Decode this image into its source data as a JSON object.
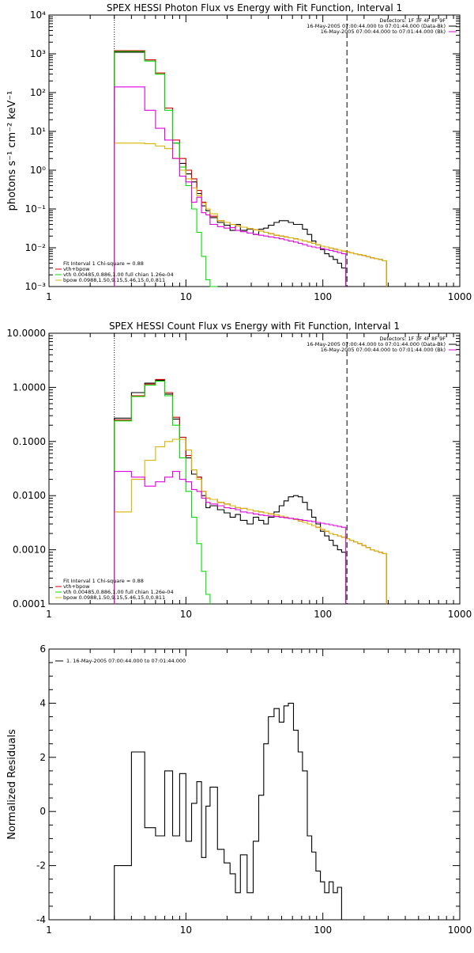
{
  "colors": {
    "data_black": "#000000",
    "total_red": "#d00000",
    "vth_green": "#00dd00",
    "bpow_yellow": "#d8b400",
    "bk_magenta": "#e000e0"
  },
  "chart_data": [
    {
      "type": "line",
      "title": "SPEX HESSI Photon Flux vs Energy with Fit Function, Interval 1",
      "ylabel": "photons s⁻¹ cm⁻² keV⁻¹",
      "xscale": "log",
      "yscale": "log",
      "xlim": [
        1,
        1000
      ],
      "ylim": [
        0.001,
        10000
      ],
      "x_ticks": [
        "1",
        "10",
        "100",
        "1000"
      ],
      "y_ticks": [
        "10⁻³",
        "10⁻²",
        "10⁻¹",
        "10⁰",
        "10¹",
        "10²",
        "10³",
        "10⁴"
      ],
      "vlines": [
        {
          "x": 3,
          "style": "dotted"
        },
        {
          "x": 150,
          "style": "dashed"
        }
      ],
      "legend_right": [
        {
          "text": "Detectors: 1F 3F 4F 8F 9F",
          "color": "#000000"
        },
        {
          "text": "16-May-2005 07:00:44.000 to 07:01:44.000 (Data-Bk)",
          "color": "#000000"
        },
        {
          "text": "16-May-2005 07:00:44.000 to 07:01:44.000 (Bk)",
          "color": "#e000e0"
        }
      ],
      "legend_left": [
        {
          "text": "Fit Interval 1   Chi-square = 0.88",
          "color": "#000000"
        },
        {
          "text": "vth+bpow",
          "color": "#d00000"
        },
        {
          "text": "vth 0.00485,0.886,1.00  full chian 1.26e-04",
          "color": "#00dd00"
        },
        {
          "text": "bpow 0.0988,1.50,9.15,5.46,15.0,0.811",
          "color": "#d8b400"
        }
      ],
      "edges": [
        3,
        4,
        5,
        6,
        7,
        8,
        9,
        10,
        11,
        12,
        13,
        14,
        15,
        17,
        19,
        21,
        23,
        25,
        28,
        31,
        34,
        37,
        40,
        44,
        48,
        52,
        56,
        61,
        66,
        71,
        77,
        83,
        89,
        96,
        103,
        111,
        119,
        128,
        137,
        147,
        157,
        168,
        180,
        193,
        207,
        222,
        238,
        255,
        273,
        292
      ],
      "series": [
        {
          "name": "Data-Bk",
          "color": "#000000",
          "values": [
            1100,
            1100,
            700,
            300,
            40,
            5,
            1.5,
            0.8,
            0.5,
            0.25,
            0.12,
            0.09,
            0.06,
            0.045,
            0.038,
            0.028,
            0.04,
            0.028,
            0.03,
            0.022,
            0.03,
            0.032,
            0.038,
            0.045,
            0.05,
            0.05,
            0.045,
            0.04,
            0.04,
            0.03,
            0.022,
            0.015,
            0.012,
            0.009,
            0.007,
            0.006,
            0.005,
            0.004,
            0.003,
            null,
            null,
            null,
            null,
            null,
            null,
            null,
            null,
            null,
            null
          ]
        },
        {
          "name": "vth+bpow",
          "color": "#d00000",
          "values": [
            1200,
            1200,
            700,
            320,
            40,
            6,
            2,
            1,
            0.6,
            0.3,
            0.15,
            0.1,
            0.065,
            0.05,
            0.045,
            0.04,
            0.037,
            0.034,
            0.031,
            0.029,
            0.027,
            0.025,
            0.023,
            0.021,
            0.02,
            0.019,
            0.018,
            0.017,
            0.016,
            0.015,
            0.014,
            0.013,
            0.012,
            0.011,
            0.0105,
            0.0098,
            0.0092,
            0.0087,
            0.0082,
            0.0078,
            0.0074,
            0.007,
            0.0066,
            0.0063,
            0.0059,
            0.0055,
            0.0052,
            0.005,
            0.0046
          ]
        },
        {
          "name": "vth",
          "color": "#00dd00",
          "values": [
            1150,
            1150,
            650,
            300,
            35,
            5,
            1.2,
            0.4,
            0.1,
            0.025,
            0.006,
            0.0015,
            0.0008,
            null,
            null,
            null,
            null,
            null,
            null,
            null,
            null,
            null,
            null,
            null,
            null,
            null,
            null,
            null,
            null,
            null,
            null,
            null,
            null,
            null,
            null,
            null,
            null,
            null,
            null,
            null,
            null,
            null,
            null,
            null,
            null,
            null,
            null,
            null,
            null
          ]
        },
        {
          "name": "bpow",
          "color": "#d8b400",
          "values": [
            5,
            5,
            4.8,
            4.2,
            3.6,
            2,
            1,
            0.6,
            0.35,
            0.22,
            0.14,
            0.1,
            0.075,
            0.05,
            0.045,
            0.04,
            0.037,
            0.034,
            0.031,
            0.029,
            0.027,
            0.025,
            0.023,
            0.021,
            0.02,
            0.019,
            0.018,
            0.017,
            0.016,
            0.015,
            0.014,
            0.013,
            0.012,
            0.011,
            0.0105,
            0.0098,
            0.0092,
            0.0087,
            0.0082,
            0.0078,
            0.0074,
            0.007,
            0.0066,
            0.0063,
            0.0059,
            0.0055,
            0.0052,
            0.005,
            0.0046
          ]
        },
        {
          "name": "Bk",
          "color": "#e000e0",
          "values": [
            140,
            140,
            35,
            12,
            6,
            2,
            0.7,
            0.5,
            0.15,
            0.2,
            0.08,
            0.07,
            0.04,
            0.035,
            0.032,
            0.033,
            0.028,
            0.026,
            0.024,
            0.022,
            0.021,
            0.02,
            0.019,
            0.018,
            0.017,
            0.016,
            0.015,
            0.014,
            0.013,
            0.012,
            0.011,
            0.0105,
            0.01,
            0.0095,
            0.009,
            0.0085,
            0.008,
            0.0075,
            0.007,
            null,
            null,
            null,
            null,
            null,
            null,
            null,
            null,
            null,
            null
          ]
        }
      ]
    },
    {
      "type": "line",
      "title": "SPEX HESSI Count Flux vs Energy with Fit Function, Interval 1",
      "ylabel": "",
      "xscale": "log",
      "yscale": "log",
      "xlim": [
        1,
        1000
      ],
      "ylim": [
        0.0001,
        10
      ],
      "x_ticks": [
        "1",
        "10",
        "100",
        "1000"
      ],
      "y_ticks": [
        "0.0001",
        "0.0010",
        "0.0100",
        "0.1000",
        "1.0000",
        "10.0000"
      ],
      "vlines": [
        {
          "x": 3,
          "style": "dotted"
        },
        {
          "x": 150,
          "style": "dashed"
        }
      ],
      "legend_right": [
        {
          "text": "Detectors: 1F 3F 4F 8F 9F",
          "color": "#000000"
        },
        {
          "text": "16-May-2005 07:00:44.000 to 07:01:44.000 (Data-Bk)",
          "color": "#000000"
        },
        {
          "text": "16-May-2005 07:00:44.000 to 07:01:44.000 (Bk)",
          "color": "#e000e0"
        }
      ],
      "legend_left": [
        {
          "text": "Fit Interval 1   Chi-square = 0.88",
          "color": "#000000"
        },
        {
          "text": "vth+bpow",
          "color": "#d00000"
        },
        {
          "text": "vth 0.00485,0.886,1.00  full chian 1.26e-04",
          "color": "#00dd00"
        },
        {
          "text": "bpow 0.0988,1.50,9.15,5.46,15.0,0.811",
          "color": "#d8b400"
        }
      ],
      "edges": [
        3,
        4,
        5,
        6,
        7,
        8,
        9,
        10,
        11,
        12,
        13,
        14,
        15,
        17,
        19,
        21,
        23,
        25,
        28,
        31,
        34,
        37,
        40,
        44,
        48,
        52,
        56,
        61,
        66,
        71,
        77,
        83,
        89,
        96,
        103,
        111,
        119,
        128,
        137,
        147,
        157,
        168,
        180,
        193,
        207,
        222,
        238,
        255,
        273,
        292
      ],
      "series": [
        {
          "name": "Data-Bk",
          "color": "#000000",
          "values": [
            0.27,
            0.8,
            1.2,
            1.35,
            0.75,
            0.26,
            0.11,
            0.05,
            0.025,
            0.022,
            0.01,
            0.006,
            0.0065,
            0.0055,
            0.0048,
            0.004,
            0.0045,
            0.0035,
            0.003,
            0.004,
            0.0035,
            0.003,
            0.004,
            0.005,
            0.0065,
            0.008,
            0.0095,
            0.01,
            0.0095,
            0.0075,
            0.0055,
            0.004,
            0.003,
            0.0022,
            0.0018,
            0.0015,
            0.0012,
            0.001,
            0.0009,
            null,
            null,
            null,
            null,
            null,
            null,
            null,
            null,
            null,
            null
          ]
        },
        {
          "name": "vth+bpow",
          "color": "#d00000",
          "values": [
            0.25,
            0.7,
            1.15,
            1.4,
            0.8,
            0.28,
            0.12,
            0.055,
            0.03,
            0.022,
            0.012,
            0.009,
            0.0085,
            0.0075,
            0.007,
            0.0065,
            0.006,
            0.0058,
            0.0055,
            0.0052,
            0.005,
            0.0048,
            0.0046,
            0.0044,
            0.0042,
            0.004,
            0.0038,
            0.0036,
            0.0034,
            0.0032,
            0.003,
            0.0028,
            0.0026,
            0.0024,
            0.0022,
            0.002,
            0.0019,
            0.0018,
            0.0017,
            0.0016,
            0.0015,
            0.0014,
            0.0013,
            0.0012,
            0.0011,
            0.001,
            0.00095,
            0.0009,
            0.00085
          ]
        },
        {
          "name": "vth",
          "color": "#00dd00",
          "values": [
            0.24,
            0.68,
            1.1,
            1.3,
            0.7,
            0.2,
            0.05,
            0.012,
            0.004,
            0.0013,
            0.0004,
            0.00015,
            null,
            null,
            null,
            null,
            null,
            null,
            null,
            null,
            null,
            null,
            null,
            null,
            null,
            null,
            null,
            null,
            null,
            null,
            null,
            null,
            null,
            null,
            null,
            null,
            null,
            null,
            null,
            null,
            null,
            null,
            null,
            null,
            null,
            null,
            null,
            null,
            null
          ]
        },
        {
          "name": "bpow",
          "color": "#d8b400",
          "values": [
            0.005,
            0.02,
            0.045,
            0.08,
            0.1,
            0.11,
            0.11,
            0.07,
            0.03,
            0.02,
            0.012,
            0.009,
            0.0085,
            0.0075,
            0.007,
            0.0065,
            0.006,
            0.0058,
            0.0055,
            0.0052,
            0.005,
            0.0048,
            0.0046,
            0.0044,
            0.0042,
            0.004,
            0.0038,
            0.0036,
            0.0034,
            0.0032,
            0.003,
            0.0028,
            0.0026,
            0.0024,
            0.0022,
            0.002,
            0.0019,
            0.0018,
            0.0017,
            0.0016,
            0.0015,
            0.0014,
            0.0013,
            0.0012,
            0.0011,
            0.001,
            0.00095,
            0.0009,
            0.00085
          ]
        },
        {
          "name": "Bk",
          "color": "#e000e0",
          "values": [
            0.028,
            0.022,
            0.015,
            0.018,
            0.022,
            0.028,
            0.02,
            0.018,
            0.013,
            0.012,
            0.009,
            0.0075,
            0.007,
            0.0065,
            0.006,
            0.0058,
            0.0055,
            0.005,
            0.0048,
            0.0046,
            0.0044,
            0.0043,
            0.0042,
            0.0041,
            0.004,
            0.0039,
            0.0038,
            0.0037,
            0.0036,
            0.0035,
            0.0034,
            0.0033,
            0.0032,
            0.0031,
            0.003,
            0.0029,
            0.0028,
            0.0027,
            0.0026,
            null,
            null,
            null,
            null,
            null,
            null,
            null,
            null,
            null,
            null
          ]
        }
      ]
    },
    {
      "type": "line",
      "title": "",
      "ylabel": "Normalized Residuals",
      "xscale": "log",
      "yscale": "linear",
      "xlim": [
        1,
        1000
      ],
      "ylim": [
        -4,
        6
      ],
      "x_ticks": [
        "1",
        "10",
        "100",
        "1000"
      ],
      "y_ticks": [
        "-4",
        "-2",
        "0",
        "2",
        "4",
        "6"
      ],
      "vlines": [],
      "legend_right": [],
      "legend_left": [
        {
          "text": "1. 16-May-2005 07:00:44.000 to 07:01:44.000",
          "color": "#000000"
        }
      ],
      "edges": [
        3,
        4,
        5,
        6,
        7,
        8,
        9,
        10,
        11,
        12,
        13,
        14,
        15,
        17,
        19,
        21,
        23,
        25,
        28,
        31,
        34,
        37,
        40,
        44,
        48,
        52,
        56,
        61,
        66,
        71,
        77,
        83,
        89,
        96,
        103,
        111,
        119,
        128,
        137,
        147,
        157
      ],
      "series": [
        {
          "name": "",
          "color": "#000000",
          "values": [
            -2.0,
            2.2,
            -0.6,
            -0.9,
            1.5,
            -0.9,
            1.4,
            -1.1,
            0.3,
            1.1,
            -1.7,
            0.2,
            0.9,
            -1.4,
            -1.9,
            -2.3,
            -3.0,
            -1.6,
            -3.0,
            -1.1,
            0.6,
            2.5,
            3.5,
            3.8,
            3.3,
            3.9,
            4.0,
            3.0,
            2.2,
            1.5,
            -0.9,
            -1.5,
            -2.2,
            -2.6,
            -3.0,
            -2.6,
            -3.0,
            -2.8,
            null,
            null
          ]
        }
      ]
    }
  ]
}
